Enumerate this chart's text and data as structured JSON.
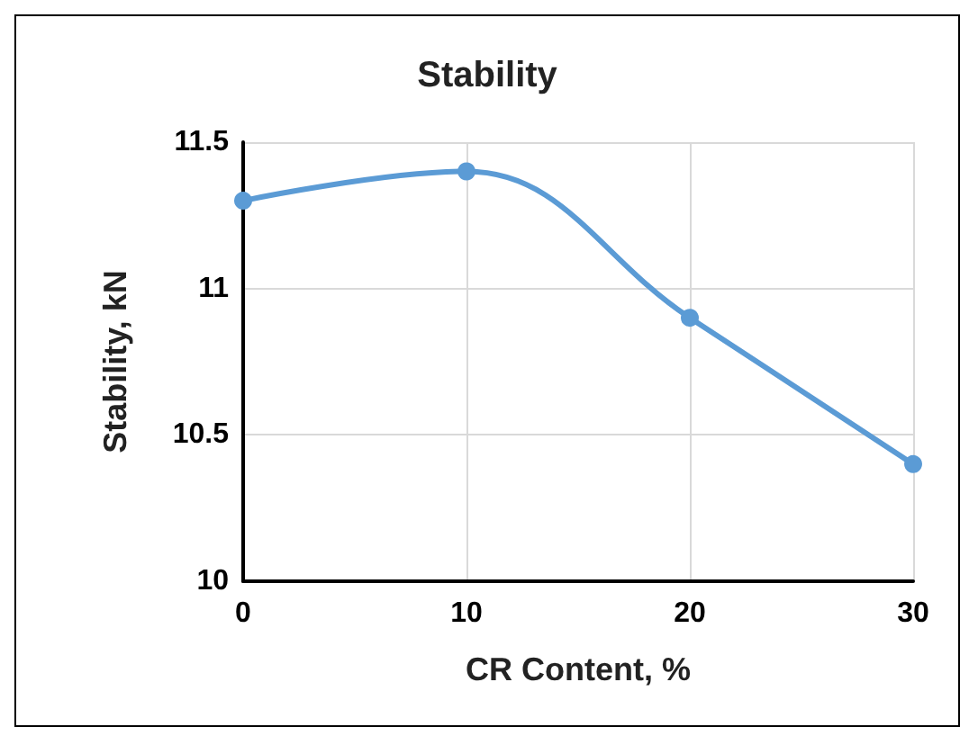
{
  "chart_data": {
    "type": "line",
    "title": "Stability",
    "xlabel": "CR Content, %",
    "ylabel": "Stability, kN",
    "x": [
      0,
      10,
      20,
      30
    ],
    "series": [
      {
        "color": "#5b9bd5",
        "values": [
          11.3,
          11.4,
          10.9,
          10.4
        ]
      }
    ],
    "xlim": [
      0,
      30
    ],
    "xticks": [
      0,
      10,
      20,
      30
    ],
    "ylim": [
      10,
      11.5
    ],
    "yticks": [
      10,
      10.5,
      11,
      11.5
    ],
    "grid": true,
    "marker": "circle",
    "line_style": "solid"
  }
}
